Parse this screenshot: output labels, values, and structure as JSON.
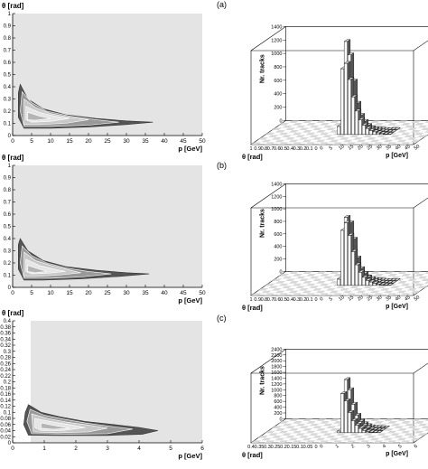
{
  "chart_data": [
    {
      "type": "contour",
      "panel": "a",
      "ylabel": "θ [rad]",
      "xlabel": "p [GeV]",
      "xlim": [
        0,
        50
      ],
      "ylim": [
        0,
        1
      ],
      "xticks": [
        "0",
        "5",
        "10",
        "15",
        "20",
        "25",
        "30",
        "35",
        "40",
        "45",
        "50"
      ],
      "yticks": [
        "0",
        "0.1",
        "0.2",
        "0.3",
        "0.4",
        "0.5",
        "0.6",
        "0.7",
        "0.8",
        "0.9",
        "1"
      ],
      "contours": [
        [
          [
            2,
            0.42
          ],
          [
            4,
            0.3
          ],
          [
            8,
            0.22
          ],
          [
            14,
            0.17
          ],
          [
            22,
            0.14
          ],
          [
            30,
            0.12
          ],
          [
            37,
            0.11
          ],
          [
            30,
            0.09
          ],
          [
            20,
            0.07
          ],
          [
            10,
            0.06
          ],
          [
            3,
            0.06
          ],
          [
            1.5,
            0.15
          ],
          [
            1.5,
            0.35
          ]
        ],
        [
          [
            2.5,
            0.36
          ],
          [
            5,
            0.27
          ],
          [
            9,
            0.2
          ],
          [
            15,
            0.16
          ],
          [
            22,
            0.13
          ],
          [
            28,
            0.11
          ],
          [
            20,
            0.085
          ],
          [
            10,
            0.075
          ],
          [
            3,
            0.075
          ],
          [
            2,
            0.2
          ]
        ],
        [
          [
            3,
            0.3
          ],
          [
            6,
            0.23
          ],
          [
            10,
            0.18
          ],
          [
            15,
            0.15
          ],
          [
            20,
            0.13
          ],
          [
            14,
            0.1
          ],
          [
            7,
            0.09
          ],
          [
            3,
            0.09
          ]
        ],
        [
          [
            3.5,
            0.24
          ],
          [
            7,
            0.19
          ],
          [
            11,
            0.16
          ],
          [
            15,
            0.14
          ],
          [
            10,
            0.115
          ],
          [
            5,
            0.11
          ],
          [
            3.5,
            0.13
          ]
        ],
        [
          [
            4,
            0.19
          ],
          [
            7,
            0.16
          ],
          [
            10,
            0.14
          ],
          [
            6,
            0.125
          ],
          [
            4,
            0.13
          ]
        ]
      ]
    },
    {
      "type": "bar3d",
      "panel": "a",
      "label": "(a)",
      "zlabel": "Nr. tracks",
      "xlabel": "p [GeV]",
      "ylabel": "θ [rad]",
      "zticks": [
        "0",
        "200",
        "400",
        "600",
        "800",
        "1000",
        "1200",
        "1400"
      ],
      "zlim": [
        0,
        1400
      ],
      "xticks": [
        "0",
        "5",
        "10",
        "15",
        "20",
        "25",
        "30",
        "35",
        "40",
        "45",
        "50"
      ],
      "yticks": [
        "1",
        "0.9",
        "0.8",
        "0.7",
        "0.6",
        "0.5",
        "0.4",
        "0.3",
        "0.2",
        "0.1",
        "0"
      ],
      "near_row": [
        120,
        980,
        1060,
        820,
        560,
        350,
        220,
        140,
        90,
        60,
        40,
        25,
        15,
        8,
        4
      ],
      "second_row": [
        200,
        1350,
        1150,
        760,
        430,
        250,
        160,
        100,
        60,
        40,
        25,
        15,
        10,
        5,
        3
      ],
      "third_row": [
        80,
        480,
        420,
        260,
        150,
        90,
        50,
        30,
        18,
        10,
        6,
        4,
        2,
        1,
        1
      ]
    },
    {
      "type": "contour",
      "panel": "b",
      "ylabel": "θ [rad]",
      "xlabel": "p [GeV]",
      "xlim": [
        0,
        50
      ],
      "ylim": [
        0,
        1
      ],
      "xticks": [
        "0",
        "5",
        "10",
        "15",
        "20",
        "25",
        "30",
        "35",
        "40",
        "45",
        "50"
      ],
      "yticks": [
        "0",
        "0.1",
        "0.2",
        "0.3",
        "0.4",
        "0.5",
        "0.6",
        "0.7",
        "0.8",
        "0.9",
        "1"
      ],
      "contours": [
        [
          [
            2,
            0.4
          ],
          [
            4,
            0.3
          ],
          [
            8,
            0.22
          ],
          [
            14,
            0.17
          ],
          [
            22,
            0.14
          ],
          [
            30,
            0.12
          ],
          [
            36,
            0.11
          ],
          [
            28,
            0.09
          ],
          [
            18,
            0.07
          ],
          [
            8,
            0.06
          ],
          [
            3,
            0.06
          ],
          [
            1.5,
            0.15
          ],
          [
            1.5,
            0.35
          ]
        ],
        [
          [
            2.5,
            0.34
          ],
          [
            5,
            0.26
          ],
          [
            9,
            0.2
          ],
          [
            14,
            0.16
          ],
          [
            20,
            0.13
          ],
          [
            26,
            0.11
          ],
          [
            18,
            0.085
          ],
          [
            10,
            0.075
          ],
          [
            3,
            0.075
          ],
          [
            2,
            0.2
          ]
        ],
        [
          [
            3,
            0.29
          ],
          [
            6,
            0.22
          ],
          [
            10,
            0.18
          ],
          [
            14,
            0.15
          ],
          [
            18,
            0.12
          ],
          [
            12,
            0.1
          ],
          [
            6,
            0.09
          ],
          [
            3,
            0.09
          ]
        ],
        [
          [
            3.5,
            0.23
          ],
          [
            7,
            0.18
          ],
          [
            11,
            0.15
          ],
          [
            14,
            0.13
          ],
          [
            9,
            0.115
          ],
          [
            5,
            0.11
          ],
          [
            3.5,
            0.13
          ]
        ],
        [
          [
            4,
            0.18
          ],
          [
            7,
            0.15
          ],
          [
            9,
            0.13
          ],
          [
            6,
            0.12
          ],
          [
            4,
            0.13
          ]
        ]
      ]
    },
    {
      "type": "bar3d",
      "panel": "b",
      "label": "(b)",
      "zlabel": "Nr. tracks",
      "xlabel": "p [GeV]",
      "ylabel": "θ [rad]",
      "zticks": [
        "0",
        "200",
        "400",
        "600",
        "800",
        "1000",
        "1200",
        "1400"
      ],
      "zlim": [
        0,
        1400
      ],
      "xticks": [
        "0",
        "5",
        "10",
        "15",
        "20",
        "25",
        "30",
        "35",
        "40",
        "45",
        "50"
      ],
      "yticks": [
        "1",
        "0.9",
        "0.8",
        "0.7",
        "0.6",
        "0.5",
        "0.4",
        "0.3",
        "0.2",
        "0.1",
        "0"
      ],
      "near_row": [
        100,
        880,
        1000,
        800,
        540,
        330,
        210,
        130,
        80,
        55,
        35,
        20,
        12,
        6,
        3
      ],
      "second_row": [
        180,
        1050,
        960,
        700,
        400,
        230,
        150,
        90,
        55,
        35,
        20,
        12,
        8,
        4,
        2
      ],
      "third_row": [
        70,
        560,
        520,
        320,
        180,
        100,
        60,
        35,
        20,
        12,
        7,
        4,
        2,
        1,
        1
      ]
    },
    {
      "type": "contour",
      "panel": "c",
      "ylabel": "θ [rad]",
      "xlabel": "p [GeV]",
      "xlim": [
        0,
        6
      ],
      "ylim": [
        0,
        0.4
      ],
      "xticks": [
        "0",
        "1",
        "2",
        "3",
        "4",
        "5",
        "6"
      ],
      "yticks": [
        "0",
        "0.02",
        "0.04",
        "0.06",
        "0.08",
        "0.1",
        "0.12",
        "0.14",
        "0.16",
        "0.18",
        "0.2",
        "0.22",
        "0.24",
        "0.26",
        "0.28",
        "0.3",
        "0.32",
        "0.34",
        "0.36",
        "0.38",
        "0.4"
      ],
      "contours": [
        [
          [
            0.5,
            0.125
          ],
          [
            0.9,
            0.1
          ],
          [
            1.5,
            0.085
          ],
          [
            2.3,
            0.07
          ],
          [
            3.2,
            0.06
          ],
          [
            4.0,
            0.05
          ],
          [
            4.6,
            0.04
          ],
          [
            4.1,
            0.028
          ],
          [
            3.0,
            0.024
          ],
          [
            1.5,
            0.024
          ],
          [
            0.5,
            0.025
          ],
          [
            0.35,
            0.06
          ],
          [
            0.4,
            0.1
          ]
        ],
        [
          [
            0.55,
            0.11
          ],
          [
            1.0,
            0.09
          ],
          [
            1.6,
            0.078
          ],
          [
            2.3,
            0.065
          ],
          [
            3.0,
            0.055
          ],
          [
            3.8,
            0.045
          ],
          [
            3.0,
            0.03
          ],
          [
            1.8,
            0.028
          ],
          [
            0.6,
            0.03
          ],
          [
            0.45,
            0.07
          ]
        ],
        [
          [
            0.6,
            0.095
          ],
          [
            1.1,
            0.08
          ],
          [
            1.7,
            0.068
          ],
          [
            2.4,
            0.058
          ],
          [
            3.0,
            0.048
          ],
          [
            2.4,
            0.036
          ],
          [
            1.4,
            0.033
          ],
          [
            0.65,
            0.036
          ]
        ],
        [
          [
            0.7,
            0.08
          ],
          [
            1.2,
            0.07
          ],
          [
            1.8,
            0.06
          ],
          [
            2.3,
            0.05
          ],
          [
            1.6,
            0.04
          ],
          [
            0.9,
            0.04
          ],
          [
            0.7,
            0.05
          ]
        ],
        [
          [
            0.9,
            0.065
          ],
          [
            1.4,
            0.055
          ],
          [
            1.8,
            0.048
          ],
          [
            1.3,
            0.044
          ],
          [
            0.9,
            0.048
          ]
        ]
      ]
    },
    {
      "type": "bar3d",
      "panel": "c",
      "label": "(c)",
      "zlabel": "Nr. tracks",
      "xlabel": "p [GeV]",
      "ylabel": "θ [rad]",
      "zticks": [
        "0",
        "200",
        "400",
        "600",
        "800",
        "1000",
        "1200",
        "1400",
        "1600",
        "1800",
        "2000",
        "2200",
        "2400"
      ],
      "zlim": [
        0,
        2400
      ],
      "xticks": [
        "0",
        "1",
        "2",
        "3",
        "4",
        "5",
        "6"
      ],
      "yticks": [
        "0.4",
        "0.35",
        "0.3",
        "0.25",
        "0.2",
        "0.15",
        "0.1",
        "0.05",
        "0"
      ],
      "near_row": [
        60,
        1350,
        1100,
        700,
        420,
        260,
        150,
        80,
        40,
        20,
        10,
        5
      ],
      "second_row": [
        120,
        1750,
        1400,
        900,
        520,
        300,
        170,
        90,
        45,
        22,
        11,
        5
      ],
      "third_row": [
        40,
        700,
        620,
        400,
        250,
        140,
        80,
        40,
        20,
        10,
        5,
        2
      ]
    }
  ]
}
